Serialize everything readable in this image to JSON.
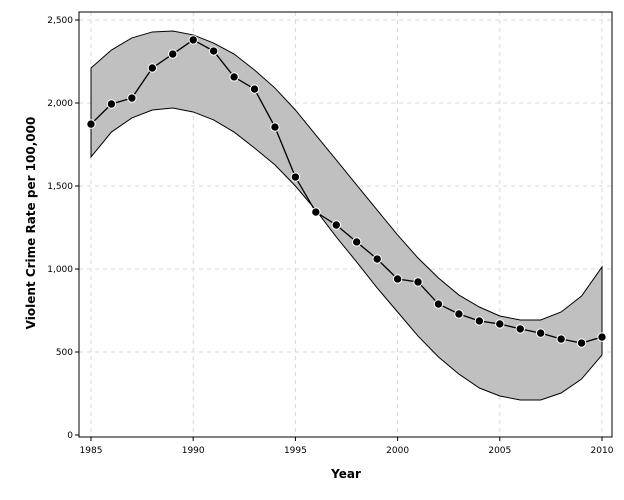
{
  "chart_data": {
    "type": "line",
    "title": "",
    "xlabel": "Year",
    "ylabel": "Violent Crime Rate per 100,000",
    "xlim": [
      1985,
      2010
    ],
    "ylim": [
      0,
      2500
    ],
    "grid": true,
    "x_ticks": [
      1985,
      1990,
      1995,
      2000,
      2005,
      2010
    ],
    "x_tick_labels": [
      "1985",
      "1990",
      "1995",
      "2000",
      "2005",
      "2010"
    ],
    "y_ticks": [
      0,
      500,
      1000,
      1500,
      2000,
      2500
    ],
    "y_tick_labels": [
      "0",
      "500",
      "1,000",
      "1,500",
      "2,000",
      "2,500"
    ],
    "x": [
      1985,
      1986,
      1987,
      1988,
      1989,
      1990,
      1991,
      1992,
      1993,
      1994,
      1995,
      1996,
      1997,
      1998,
      1999,
      2000,
      2001,
      2002,
      2003,
      2004,
      2005,
      2006,
      2007,
      2008,
      2009,
      2010
    ],
    "series": [
      {
        "name": "Violent Crime Rate",
        "values": [
          1873,
          1994,
          2030,
          2211,
          2295,
          2380,
          2313,
          2157,
          2084,
          1855,
          1554,
          1343,
          1265,
          1163,
          1060,
          940,
          922,
          789,
          729,
          687,
          669,
          639,
          614,
          578,
          554,
          590
        ]
      }
    ],
    "band": {
      "upper": [
        2211,
        2319,
        2392,
        2428,
        2434,
        2410,
        2361,
        2295,
        2199,
        2090,
        1958,
        1807,
        1657,
        1506,
        1355,
        1205,
        1066,
        946,
        843,
        771,
        717,
        693,
        693,
        741,
        837,
        1012
      ],
      "lower": [
        1675,
        1825,
        1910,
        1958,
        1970,
        1946,
        1898,
        1825,
        1729,
        1627,
        1500,
        1355,
        1193,
        1042,
        886,
        741,
        596,
        470,
        367,
        283,
        235,
        211,
        211,
        253,
        337,
        482
      ]
    },
    "colors": {
      "band": "#c0c0c0",
      "line": "#000000",
      "grid": "#d9d9d9"
    }
  }
}
